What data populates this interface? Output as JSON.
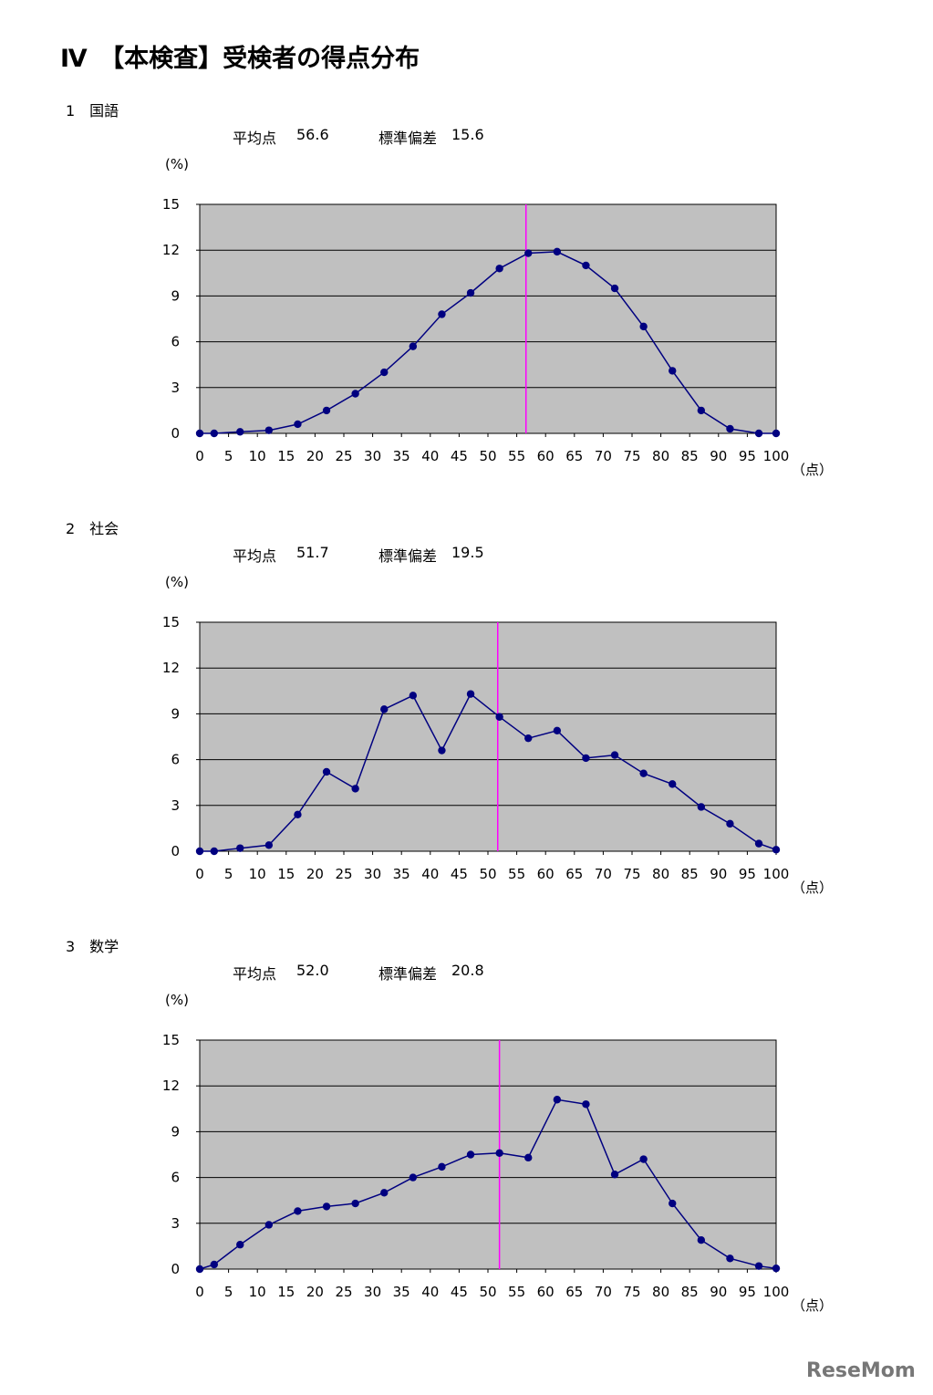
{
  "page_title": "Ⅳ　【本検査】受検者の得点分布",
  "logo_text": "ReseMom",
  "colors": {
    "plot_bg": "#c0c0c0",
    "series": "#000080",
    "mean_line": "#ff00ff",
    "grid": "#000000"
  },
  "charts": [
    {
      "heading": "1　国語",
      "mean_label": "平均点",
      "mean_value": "56.6",
      "sd_label": "標準偏差",
      "sd_value": "15.6"
    },
    {
      "heading": "2　社会",
      "mean_label": "平均点",
      "mean_value": "51.7",
      "sd_label": "標準偏差",
      "sd_value": "19.5"
    },
    {
      "heading": "3　数学",
      "mean_label": "平均点",
      "mean_value": "52.0",
      "sd_label": "標準偏差",
      "sd_value": "20.8"
    }
  ],
  "chart_data": [
    {
      "type": "line",
      "ylabel": "(%)",
      "xlabel": "（点）",
      "xlim": [
        0,
        100
      ],
      "ylim": [
        0,
        15
      ],
      "x_ticks": [
        0,
        5,
        10,
        15,
        20,
        25,
        30,
        35,
        40,
        45,
        50,
        55,
        60,
        65,
        70,
        75,
        80,
        85,
        90,
        95,
        100
      ],
      "y_ticks": [
        0,
        3,
        6,
        9,
        12,
        15
      ],
      "grid": true,
      "mean": 56.6,
      "x": [
        0,
        2.5,
        7,
        12,
        17,
        22,
        27,
        32,
        37,
        42,
        47,
        52,
        57,
        62,
        67,
        72,
        77,
        82,
        87,
        92,
        97,
        100
      ],
      "values": [
        0,
        0,
        0.1,
        0.2,
        0.6,
        1.5,
        2.6,
        4.0,
        5.7,
        7.8,
        9.2,
        10.8,
        11.8,
        11.9,
        11.0,
        9.5,
        7.0,
        4.1,
        1.5,
        0.3,
        0,
        0
      ]
    },
    {
      "type": "line",
      "ylabel": "(%)",
      "xlabel": "（点）",
      "xlim": [
        0,
        100
      ],
      "ylim": [
        0,
        15
      ],
      "x_ticks": [
        0,
        5,
        10,
        15,
        20,
        25,
        30,
        35,
        40,
        45,
        50,
        55,
        60,
        65,
        70,
        75,
        80,
        85,
        90,
        95,
        100
      ],
      "y_ticks": [
        0,
        3,
        6,
        9,
        12,
        15
      ],
      "grid": true,
      "mean": 51.7,
      "x": [
        0,
        2.5,
        7,
        12,
        17,
        22,
        27,
        32,
        37,
        42,
        47,
        52,
        57,
        62,
        67,
        72,
        77,
        82,
        87,
        92,
        97,
        100
      ],
      "values": [
        0,
        0,
        0.2,
        0.4,
        2.4,
        5.2,
        4.1,
        9.3,
        10.2,
        6.6,
        10.3,
        8.8,
        7.4,
        7.9,
        6.1,
        6.3,
        5.1,
        4.4,
        2.9,
        1.8,
        0.5,
        0.1
      ]
    },
    {
      "type": "line",
      "ylabel": "(%)",
      "xlabel": "（点）",
      "xlim": [
        0,
        100
      ],
      "ylim": [
        0,
        15
      ],
      "x_ticks": [
        0,
        5,
        10,
        15,
        20,
        25,
        30,
        35,
        40,
        45,
        50,
        55,
        60,
        65,
        70,
        75,
        80,
        85,
        90,
        95,
        100
      ],
      "y_ticks": [
        0,
        3,
        6,
        9,
        12,
        15
      ],
      "grid": true,
      "mean": 52.0,
      "x": [
        0,
        2.5,
        7,
        12,
        17,
        22,
        27,
        32,
        37,
        42,
        47,
        52,
        57,
        62,
        67,
        72,
        77,
        82,
        87,
        92,
        97,
        100
      ],
      "values": [
        0,
        0.3,
        1.6,
        2.9,
        3.8,
        4.1,
        4.3,
        5.0,
        6.0,
        6.7,
        7.5,
        7.6,
        7.3,
        11.1,
        10.8,
        6.2,
        7.2,
        4.3,
        1.9,
        0.7,
        0.2,
        0.05
      ]
    }
  ]
}
